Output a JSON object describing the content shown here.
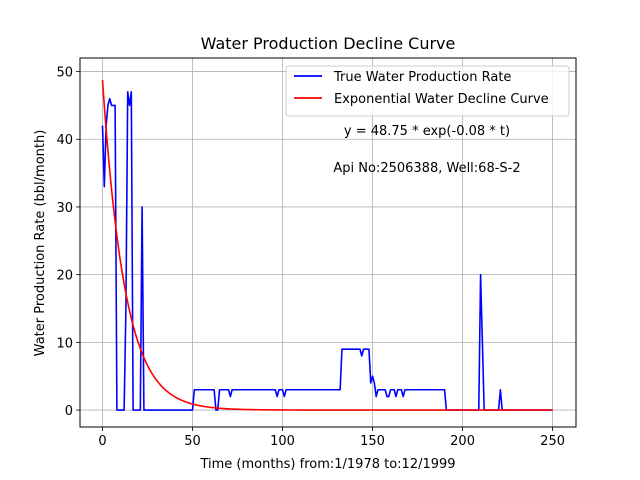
{
  "chart_data": {
    "type": "line",
    "title": "Water Production Decline Curve",
    "xlabel": "Time (months) from:1/1978 to:12/1999",
    "ylabel": "Water Production Rate (bbl/month)",
    "xlim": [
      -12.5,
      263
    ],
    "ylim": [
      -2.5,
      52
    ],
    "xticks": [
      0,
      50,
      100,
      150,
      200,
      250
    ],
    "yticks": [
      0,
      10,
      20,
      30,
      40,
      50
    ],
    "grid": true,
    "legend_position": "top-right",
    "annotations": [
      {
        "text": "y = 48.75 * exp(-0.08 * t)",
        "x": 180,
        "y": 40
      },
      {
        "text": "Api No:2506388, Well:68-S-2",
        "x": 180,
        "y": 35
      }
    ],
    "series": [
      {
        "name": "True Water Production Rate",
        "color": "#0000ff",
        "points": [
          [
            0,
            42
          ],
          [
            1,
            33
          ],
          [
            2,
            42
          ],
          [
            3,
            45
          ],
          [
            4,
            46
          ],
          [
            5,
            45
          ],
          [
            6,
            45
          ],
          [
            7,
            45
          ],
          [
            8,
            0
          ],
          [
            9,
            0
          ],
          [
            10,
            0
          ],
          [
            11,
            0
          ],
          [
            12,
            0
          ],
          [
            13,
            15
          ],
          [
            14,
            47
          ],
          [
            15,
            45
          ],
          [
            16,
            47
          ],
          [
            17,
            0
          ],
          [
            18,
            0
          ],
          [
            19,
            0
          ],
          [
            20,
            0
          ],
          [
            21,
            0
          ],
          [
            22,
            30
          ],
          [
            23,
            0
          ],
          [
            24,
            0
          ],
          [
            30,
            0
          ],
          [
            40,
            0
          ],
          [
            50,
            0
          ],
          [
            51,
            3
          ],
          [
            60,
            3
          ],
          [
            62,
            3
          ],
          [
            63,
            0
          ],
          [
            64,
            0
          ],
          [
            65,
            3
          ],
          [
            70,
            3
          ],
          [
            71,
            2
          ],
          [
            72,
            3
          ],
          [
            80,
            3
          ],
          [
            96,
            3
          ],
          [
            97,
            2
          ],
          [
            98,
            3
          ],
          [
            100,
            3
          ],
          [
            101,
            2
          ],
          [
            102,
            3
          ],
          [
            110,
            3
          ],
          [
            120,
            3
          ],
          [
            130,
            3
          ],
          [
            132,
            3
          ],
          [
            133,
            9
          ],
          [
            140,
            9
          ],
          [
            143,
            9
          ],
          [
            144,
            8
          ],
          [
            145,
            9
          ],
          [
            148,
            9
          ],
          [
            149,
            4
          ],
          [
            150,
            5
          ],
          [
            151,
            4
          ],
          [
            152,
            2
          ],
          [
            153,
            3
          ],
          [
            157,
            3
          ],
          [
            158,
            2
          ],
          [
            159,
            2
          ],
          [
            160,
            3
          ],
          [
            162,
            3
          ],
          [
            163,
            2
          ],
          [
            164,
            3
          ],
          [
            166,
            3
          ],
          [
            167,
            2
          ],
          [
            168,
            3
          ],
          [
            180,
            3
          ],
          [
            190,
            3
          ],
          [
            191,
            0
          ],
          [
            200,
            0
          ],
          [
            209,
            0
          ],
          [
            210,
            20
          ],
          [
            211,
            10
          ],
          [
            212,
            0
          ],
          [
            215,
            0
          ],
          [
            220,
            0
          ],
          [
            221,
            3
          ],
          [
            222,
            0
          ],
          [
            230,
            0
          ],
          [
            240,
            0
          ],
          [
            250,
            0
          ]
        ]
      },
      {
        "name": "Exponential Water Decline Curve",
        "color": "#ff0000",
        "model": {
          "a": 48.75,
          "b": 0.08,
          "t_start": 0,
          "t_end": 250
        }
      }
    ]
  }
}
